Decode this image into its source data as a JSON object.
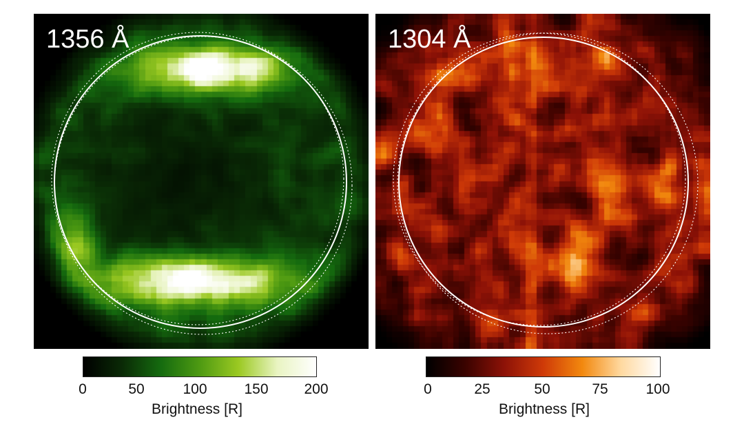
{
  "panels": [
    {
      "label": "1356 Å",
      "colorbar": {
        "ticks": [
          "0",
          "50",
          "100",
          "150",
          "200"
        ],
        "title": "Brightness [R]",
        "colors": [
          "#000000",
          "#0a2a06",
          "#156b0f",
          "#4e9a12",
          "#9bc922",
          "#e9f4c2",
          "#ffffff"
        ]
      }
    },
    {
      "label": "1304 Å",
      "colorbar": {
        "ticks": [
          "0",
          "25",
          "50",
          "75",
          "100"
        ],
        "title": "Brightness [R]",
        "colors": [
          "#000000",
          "#3a0300",
          "#8d1207",
          "#cf3a08",
          "#f2880e",
          "#ffd9a0",
          "#ffffff"
        ]
      }
    }
  ]
}
